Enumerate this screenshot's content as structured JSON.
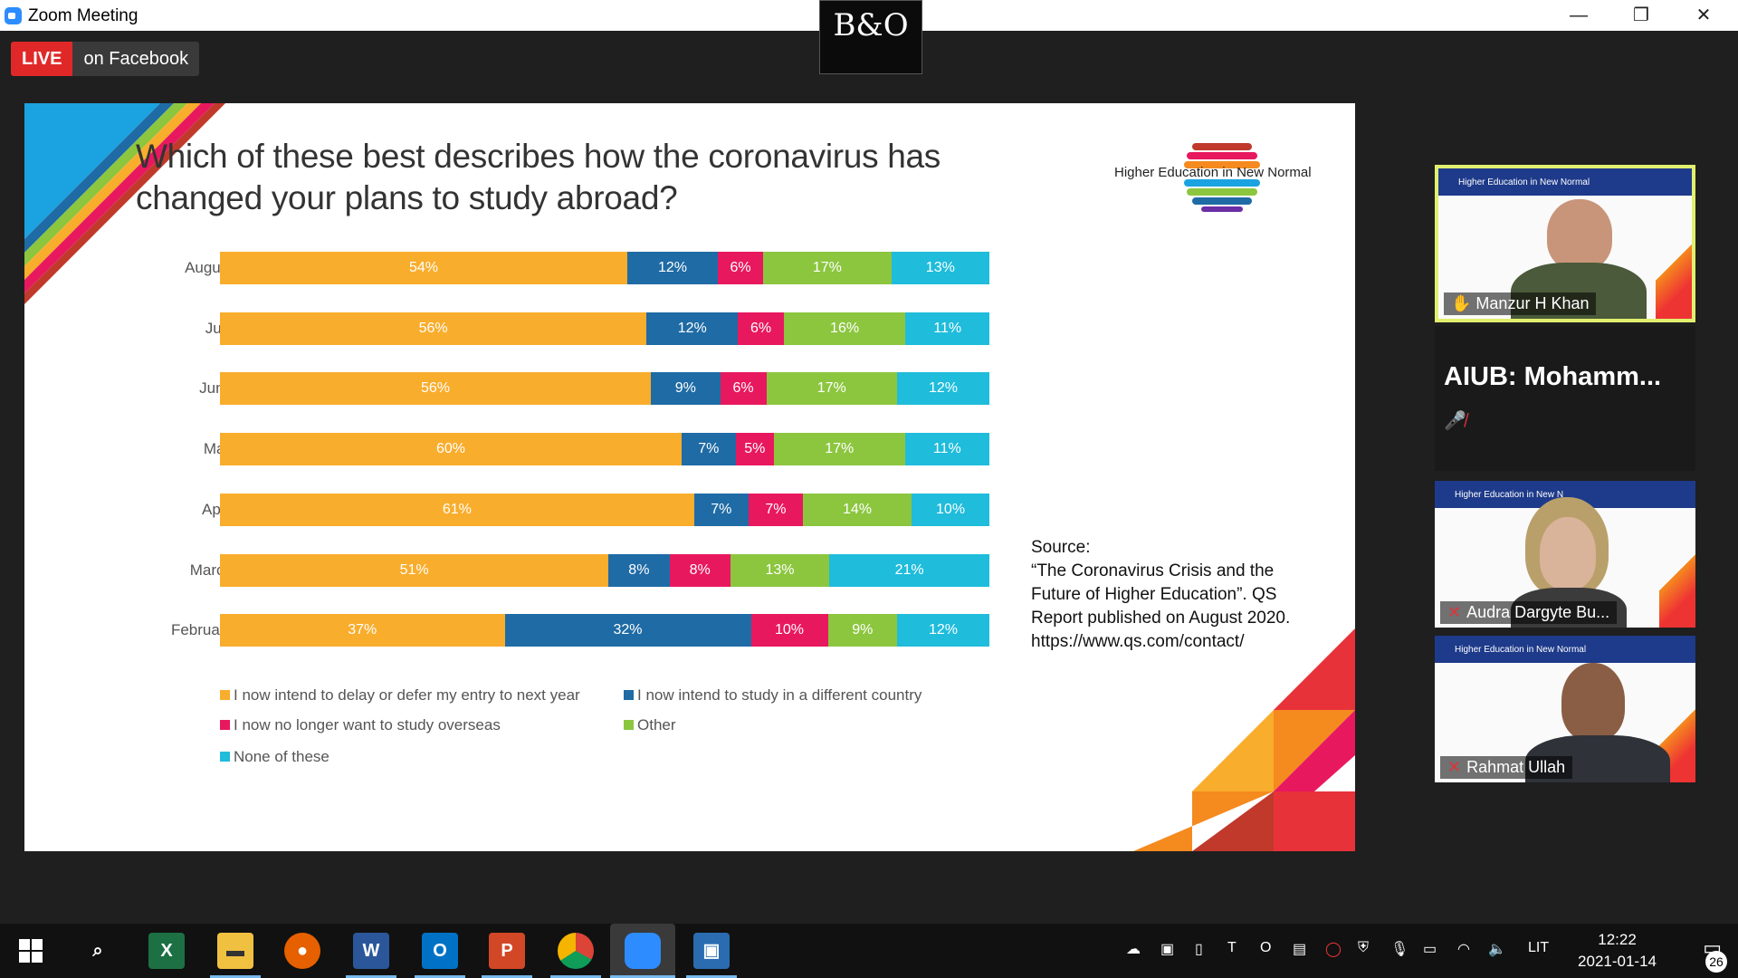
{
  "window": {
    "title": "Zoom Meeting",
    "minimize": "—",
    "restore": "❐",
    "close": "✕",
    "brand_badge": "B&O"
  },
  "live": {
    "tag": "LIVE",
    "platform": "on Facebook"
  },
  "slide": {
    "title_line1": "Which of these best describes how the coronavirus has",
    "title_line2": "changed your plans to study abroad?",
    "brand": "Higher Education in New Normal",
    "source_lines": [
      "Source:",
      "“The Coronavirus Crisis and the",
      "Future of Higher Education”. QS",
      "Report published on August 2020.",
      "https://www.qs.com/contact/"
    ]
  },
  "chart_data": {
    "type": "bar",
    "stacked": true,
    "orientation": "horizontal",
    "title": "Which of these best describes how the coronavirus has changed your plans to study abroad?",
    "categories": [
      "August",
      "July",
      "June",
      "May",
      "April",
      "March",
      "February"
    ],
    "series": [
      {
        "name": "I now intend to delay or defer my entry to next year",
        "color": "#f9ad2c",
        "values": [
          54,
          56,
          56,
          60,
          61,
          51,
          37
        ]
      },
      {
        "name": "I now intend to study in a different country",
        "color": "#1f6ba5",
        "values": [
          12,
          12,
          9,
          7,
          7,
          8,
          32
        ]
      },
      {
        "name": "I now no longer want to study overseas",
        "color": "#e8185f",
        "values": [
          6,
          6,
          6,
          5,
          7,
          8,
          10
        ]
      },
      {
        "name": "Other",
        "color": "#8cc63f",
        "values": [
          17,
          16,
          17,
          17,
          14,
          13,
          9
        ]
      },
      {
        "name": "None of these",
        "color": "#1fbcdb",
        "values": [
          13,
          11,
          12,
          11,
          10,
          21,
          12
        ]
      }
    ],
    "value_suffix": "%",
    "legend_placement": "bottom"
  },
  "participants": [
    {
      "name": "Manzur H Khan",
      "active": true,
      "muted": false,
      "slide_banner": "Higher Education in New Normal"
    },
    {
      "name": "AIUB:  Mohamm...",
      "active": false,
      "muted": true
    },
    {
      "name": "Audra Dargyte Bu...",
      "active": false,
      "muted": true,
      "slide_banner": "Higher Education in New N"
    },
    {
      "name": "Rahmat Ullah",
      "active": false,
      "muted": true,
      "slide_banner": "Higher Education in New Normal"
    }
  ],
  "taskbar": {
    "apps": [
      "start-icon",
      "search-icon",
      "excel-icon",
      "file-explorer-icon",
      "firefox-icon",
      "word-icon",
      "outlook-icon",
      "powerpoint-icon",
      "chrome-icon",
      "zoom-icon",
      "photos-icon"
    ],
    "language": "LIT",
    "time": "12:22",
    "date": "2021-01-14",
    "notifications": "26",
    "colors": {
      "accent": "#76b9ed"
    }
  }
}
